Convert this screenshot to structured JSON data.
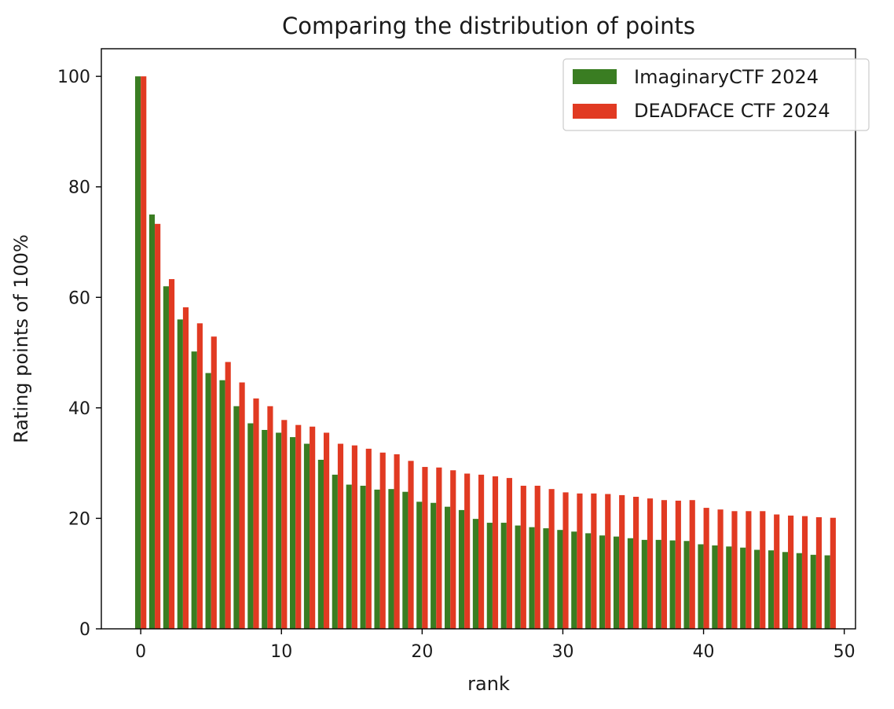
{
  "chart_data": {
    "type": "bar",
    "title": "Comparing the distribution of points",
    "xlabel": "rank",
    "ylabel": "Rating points of 100%",
    "xlim": [
      -2.8,
      50.8
    ],
    "ylim": [
      0,
      105
    ],
    "x_ticks": [
      0,
      10,
      20,
      30,
      40,
      50
    ],
    "y_ticks": [
      0,
      20,
      40,
      60,
      80,
      100
    ],
    "grid": false,
    "legend_position": "upper right",
    "x": [
      0,
      1,
      2,
      3,
      4,
      5,
      6,
      7,
      8,
      9,
      10,
      11,
      12,
      13,
      14,
      15,
      16,
      17,
      18,
      19,
      20,
      21,
      22,
      23,
      24,
      25,
      26,
      27,
      28,
      29,
      30,
      31,
      32,
      33,
      34,
      35,
      36,
      37,
      38,
      39,
      40,
      41,
      42,
      43,
      44,
      45,
      46,
      47,
      48,
      49
    ],
    "series": [
      {
        "name": "ImaginaryCTF 2024",
        "color": "#3a7d22",
        "offset": -0.2,
        "values": [
          100,
          75.0,
          62.0,
          56.0,
          50.2,
          46.3,
          45.0,
          40.3,
          37.2,
          36.0,
          35.5,
          34.7,
          33.5,
          30.6,
          27.9,
          26.1,
          25.9,
          25.2,
          25.3,
          24.8,
          23.0,
          22.8,
          22.1,
          21.5,
          19.9,
          19.2,
          19.2,
          18.7,
          18.4,
          18.2,
          17.9,
          17.6,
          17.3,
          16.9,
          16.7,
          16.4,
          16.1,
          16.1,
          16.0,
          15.9,
          15.3,
          15.1,
          14.9,
          14.7,
          14.3,
          14.2,
          13.9,
          13.7,
          13.4,
          13.3
        ]
      },
      {
        "name": "DEADFACE CTF 2024",
        "color": "#e13a22",
        "offset": 0.2,
        "values": [
          100,
          73.3,
          63.3,
          58.2,
          55.3,
          52.9,
          48.3,
          44.6,
          41.7,
          40.3,
          37.8,
          36.9,
          36.6,
          35.5,
          33.5,
          33.2,
          32.6,
          31.9,
          31.6,
          30.4,
          29.3,
          29.2,
          28.7,
          28.1,
          27.9,
          27.6,
          27.3,
          25.9,
          25.9,
          25.3,
          24.7,
          24.5,
          24.5,
          24.4,
          24.2,
          23.9,
          23.6,
          23.3,
          23.2,
          23.3,
          21.9,
          21.6,
          21.3,
          21.3,
          21.3,
          20.7,
          20.5,
          20.4,
          20.2,
          20.1
        ]
      }
    ]
  }
}
